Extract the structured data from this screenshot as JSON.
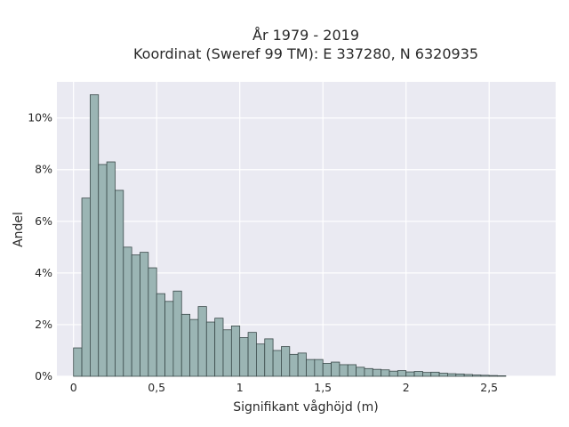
{
  "chart_data": {
    "type": "bar",
    "title_lines": [
      "År 1979 - 2019",
      "Koordinat (Sweref 99 TM): E 337280, N 6320935"
    ],
    "xlabel": "Signifikant våghöjd (m)",
    "ylabel": "Andel",
    "x_ticks": [
      0,
      0.5,
      1,
      1.5,
      2,
      2.5
    ],
    "x_tick_labels": [
      "0",
      "0,5",
      "1",
      "1,5",
      "2",
      "2,5"
    ],
    "y_ticks": [
      0,
      2,
      4,
      6,
      8,
      10
    ],
    "y_tick_labels": [
      "0%",
      "2%",
      "4%",
      "6%",
      "8%",
      "10%"
    ],
    "xlim": [
      -0.1,
      2.9
    ],
    "ylim": [
      0,
      11.4
    ],
    "bin_width": 0.05,
    "bin_start": 0.0,
    "values": [
      1.1,
      6.9,
      10.9,
      8.2,
      8.3,
      7.2,
      5.0,
      4.7,
      4.8,
      4.2,
      3.2,
      2.9,
      3.3,
      2.4,
      2.2,
      2.7,
      2.1,
      2.25,
      1.8,
      1.95,
      1.5,
      1.7,
      1.25,
      1.45,
      1.0,
      1.15,
      0.85,
      0.9,
      0.65,
      0.65,
      0.5,
      0.55,
      0.45,
      0.45,
      0.35,
      0.3,
      0.27,
      0.25,
      0.2,
      0.22,
      0.17,
      0.19,
      0.15,
      0.16,
      0.12,
      0.1,
      0.09,
      0.07,
      0.05,
      0.04,
      0.03,
      0.02
    ],
    "colors": {
      "bar_fill": "#9bb5b4",
      "bar_edge": "#3b4a4a",
      "plot_bg": "#eaeaf2",
      "grid": "#ffffff"
    },
    "grid": true
  }
}
